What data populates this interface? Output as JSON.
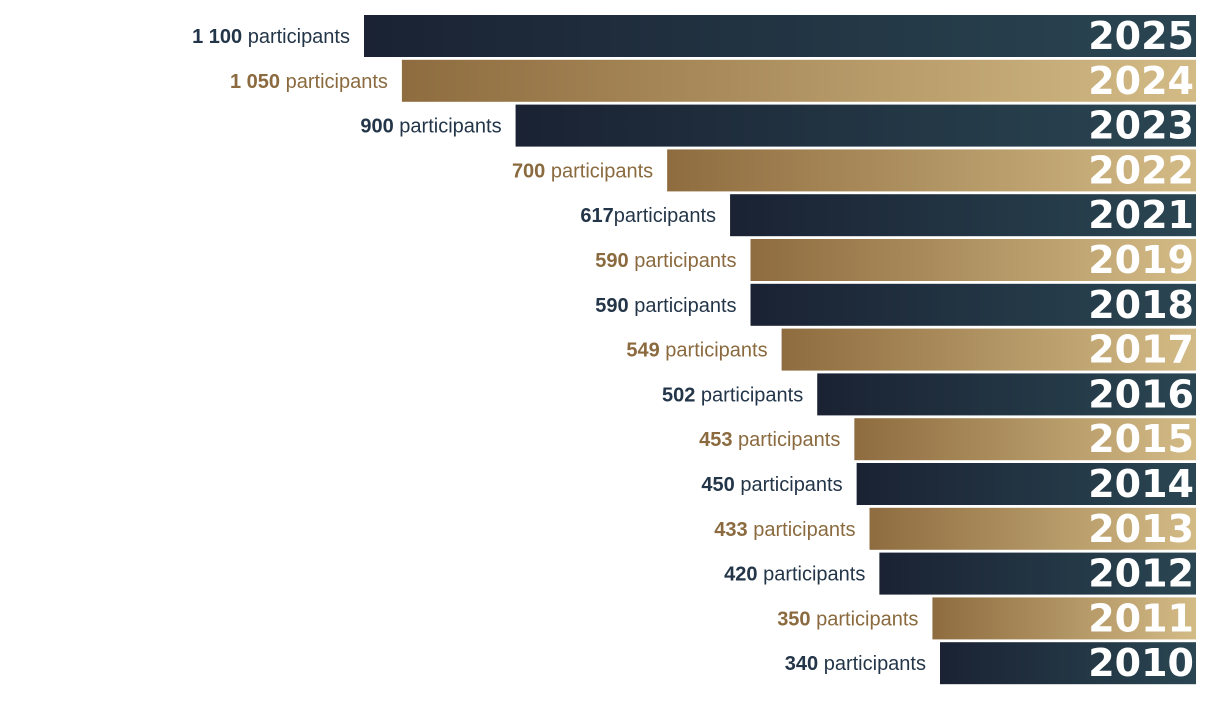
{
  "colors": {
    "dark_start": "#1a2233",
    "dark_end": "#2a4652",
    "gold_start": "#8e6c3f",
    "gold_end": "#d3bb86",
    "dark_label": "#233548",
    "gold_label": "#8a6a3e"
  },
  "chart_data": {
    "type": "bar",
    "orientation": "horizontal",
    "unit": "participants",
    "bars": [
      {
        "year": "2025",
        "value": 1100,
        "value_label": "1 100",
        "suffix": " participants",
        "style": "dark"
      },
      {
        "year": "2024",
        "value": 1050,
        "value_label": "1 050",
        "suffix": " participants",
        "style": "gold"
      },
      {
        "year": "2023",
        "value": 900,
        "value_label": "900",
        "suffix": " participants",
        "style": "dark"
      },
      {
        "year": "2022",
        "value": 700,
        "value_label": "700",
        "suffix": " participants",
        "style": "gold"
      },
      {
        "year": "2021",
        "value": 617,
        "value_label": "617",
        "suffix": "participants",
        "style": "dark"
      },
      {
        "year": "2019",
        "value": 590,
        "value_label": "590",
        "suffix": " participants",
        "style": "gold"
      },
      {
        "year": "2018",
        "value": 590,
        "value_label": "590",
        "suffix": " participants",
        "style": "dark"
      },
      {
        "year": "2017",
        "value": 549,
        "value_label": "549",
        "suffix": " participants",
        "style": "gold"
      },
      {
        "year": "2016",
        "value": 502,
        "value_label": "502",
        "suffix": " participants",
        "style": "dark"
      },
      {
        "year": "2015",
        "value": 453,
        "value_label": "453",
        "suffix": " participants",
        "style": "gold"
      },
      {
        "year": "2014",
        "value": 450,
        "value_label": "450",
        "suffix": " participants",
        "style": "dark"
      },
      {
        "year": "2013",
        "value": 433,
        "value_label": "433",
        "suffix": " participants",
        "style": "gold"
      },
      {
        "year": "2012",
        "value": 420,
        "value_label": "420",
        "suffix": " participants",
        "style": "dark"
      },
      {
        "year": "2011",
        "value": 350,
        "value_label": "350",
        "suffix": " participants",
        "style": "gold"
      },
      {
        "year": "2010",
        "value": 340,
        "value_label": "340",
        "suffix": " participants",
        "style": "dark"
      }
    ]
  }
}
